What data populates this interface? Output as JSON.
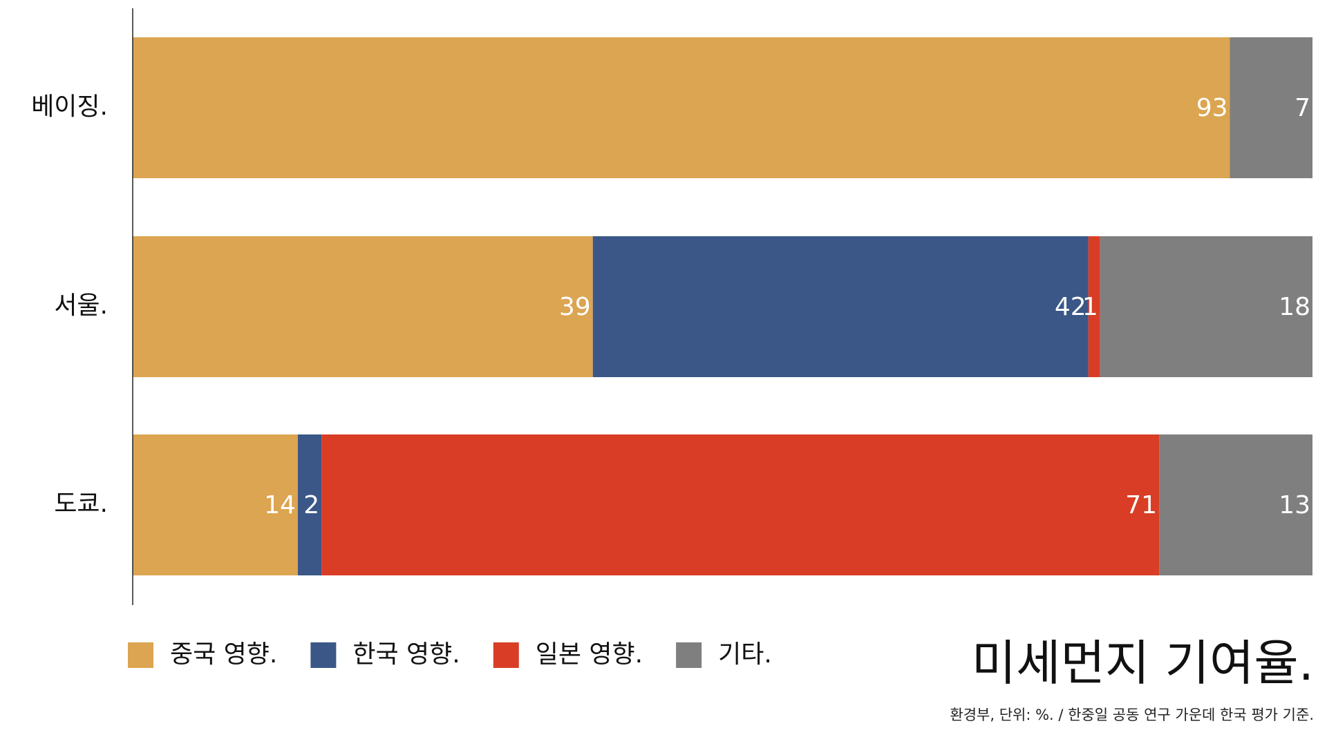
{
  "chart_data": {
    "type": "stacked-bar-horizontal",
    "title": "미세먼지 기여율.",
    "source": "환경부, 단위: %. / 한중일 공동 연구 가운데 한국 평가 기준.",
    "categories": [
      "베이징.",
      "서울.",
      "도쿄."
    ],
    "series": [
      {
        "name": "중국 영향.",
        "color": "#dca551",
        "values": [
          93,
          39,
          14
        ]
      },
      {
        "name": "한국 영향.",
        "color": "#3a5787",
        "values": [
          null,
          42,
          2
        ]
      },
      {
        "name": "일본 영향.",
        "color": "#d93d26",
        "values": [
          null,
          1,
          71
        ]
      },
      {
        "name": "기타.",
        "color": "#7f7f7f",
        "values": [
          7,
          18,
          13
        ]
      }
    ],
    "xlim": [
      0,
      100
    ],
    "legend": "bottom-left",
    "grid": false
  }
}
